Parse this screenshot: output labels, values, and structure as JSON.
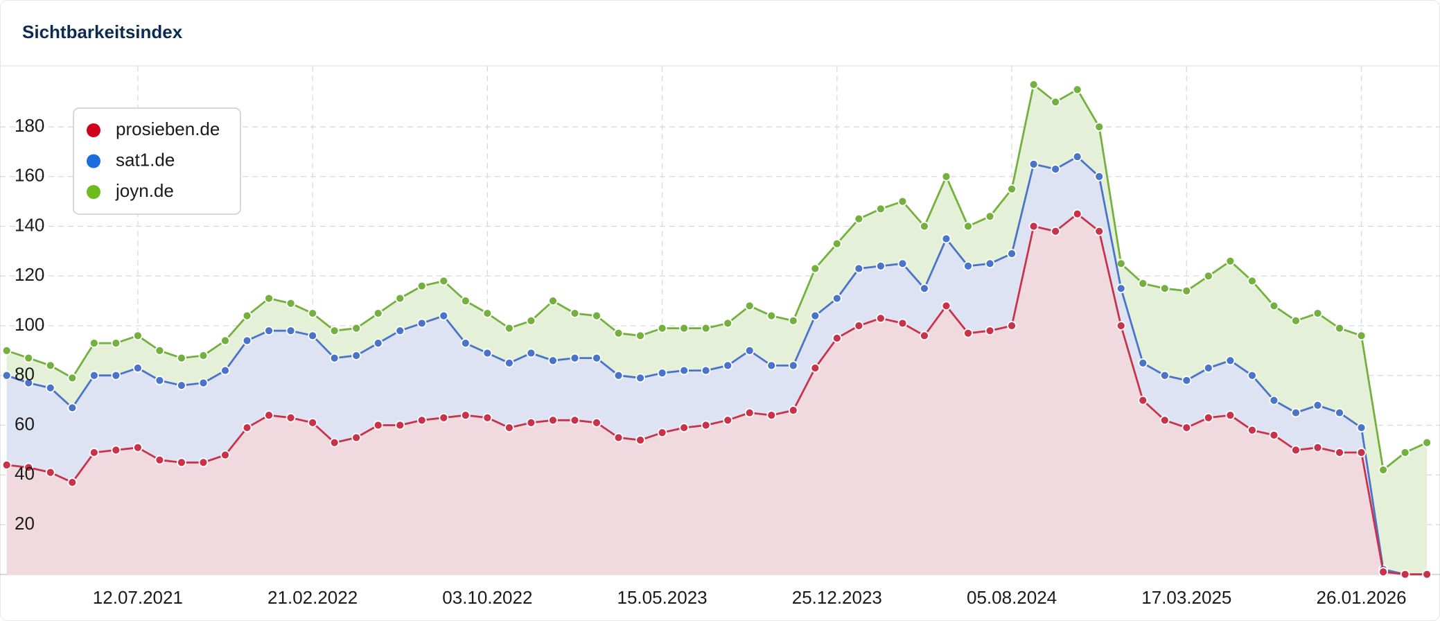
{
  "chart_data": {
    "type": "area",
    "title": "Sichtbarkeitsindex",
    "categories": [
      null,
      null,
      null,
      null,
      null,
      null,
      "12.07.2021",
      null,
      null,
      null,
      null,
      null,
      null,
      null,
      "21.02.2022",
      null,
      null,
      null,
      null,
      null,
      null,
      null,
      "03.10.2022",
      null,
      null,
      null,
      null,
      null,
      null,
      null,
      "15.05.2023",
      null,
      null,
      null,
      null,
      null,
      null,
      null,
      "25.12.2023",
      null,
      null,
      null,
      null,
      null,
      null,
      null,
      "05.08.2024",
      null,
      null,
      null,
      null,
      null,
      null,
      null,
      "17.03.2025",
      null,
      null,
      null,
      null,
      null,
      null,
      null,
      "26.01.2026",
      null,
      null,
      null
    ],
    "series": [
      {
        "name": "prosieben.de",
        "color": "#c8334a",
        "fill": "#f1dadf",
        "legend_color": "#d0021b",
        "values": [
          44,
          43,
          41,
          37,
          49,
          50,
          51,
          46,
          45,
          45,
          48,
          59,
          64,
          63,
          61,
          53,
          55,
          60,
          60,
          62,
          63,
          64,
          63,
          59,
          61,
          62,
          62,
          61,
          55,
          54,
          57,
          59,
          60,
          62,
          65,
          64,
          66,
          83,
          95,
          100,
          103,
          101,
          96,
          108,
          97,
          98,
          100,
          140,
          138,
          145,
          138,
          100,
          70,
          62,
          59,
          63,
          64,
          58,
          56,
          50,
          51,
          49,
          49,
          1,
          0,
          0
        ]
      },
      {
        "name": "sat1.de",
        "color": "#4a74c9",
        "fill": "#dde3f3",
        "legend_color": "#1a6ddb",
        "values": [
          80,
          77,
          75,
          67,
          80,
          80,
          83,
          78,
          76,
          77,
          82,
          94,
          98,
          98,
          96,
          87,
          88,
          93,
          98,
          101,
          104,
          93,
          89,
          85,
          89,
          86,
          87,
          87,
          80,
          79,
          81,
          82,
          82,
          84,
          90,
          84,
          84,
          104,
          111,
          123,
          124,
          125,
          115,
          135,
          124,
          125,
          129,
          165,
          163,
          168,
          160,
          115,
          85,
          80,
          78,
          83,
          86,
          80,
          70,
          65,
          68,
          65,
          59,
          2,
          0,
          0
        ]
      },
      {
        "name": "joyn.de",
        "color": "#73b03d",
        "fill": "#e4f0d8",
        "legend_color": "#6fba1c",
        "values": [
          90,
          87,
          84,
          79,
          93,
          93,
          96,
          90,
          87,
          88,
          94,
          104,
          111,
          109,
          105,
          98,
          99,
          105,
          111,
          116,
          118,
          110,
          105,
          99,
          102,
          110,
          105,
          104,
          97,
          96,
          99,
          99,
          99,
          101,
          108,
          104,
          102,
          123,
          133,
          143,
          147,
          150,
          140,
          160,
          140,
          144,
          155,
          197,
          190,
          195,
          180,
          125,
          117,
          115,
          114,
          120,
          126,
          118,
          108,
          102,
          105,
          99,
          96,
          42,
          49,
          53
        ]
      }
    ],
    "ylim": [
      0,
      200
    ],
    "yticks": [
      20,
      40,
      60,
      80,
      100,
      120,
      140,
      160,
      180
    ],
    "grid": true,
    "legend": "top-left"
  }
}
